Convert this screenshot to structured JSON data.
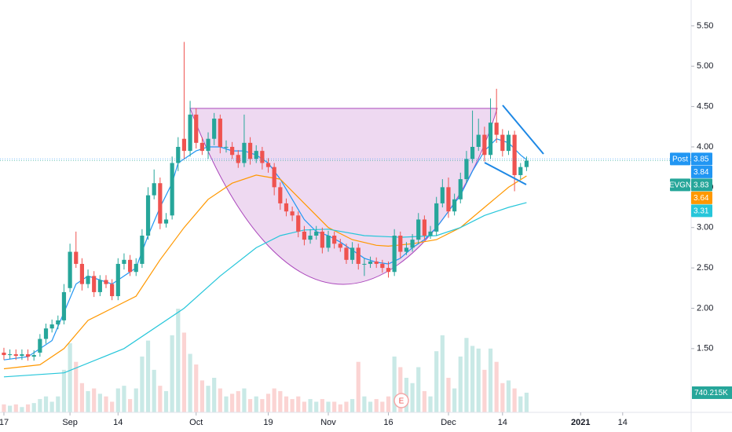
{
  "chart_data": {
    "type": "candlestick",
    "symbol": "EVGN",
    "up_color": "#26a69a",
    "down_color": "#ef5350",
    "open": [
      1.45,
      1.42,
      1.43,
      1.41,
      1.43,
      1.4,
      1.45,
      1.62,
      1.75,
      1.8,
      1.85,
      2.25,
      2.7,
      2.55,
      2.3,
      2.4,
      2.2,
      2.35,
      2.3,
      2.15,
      2.55,
      2.6,
      2.45,
      2.55,
      2.9,
      3.4,
      3.55,
      3.05,
      3.15,
      3.8,
      4.1,
      3.95,
      4.4,
      4.05,
      3.95,
      4.1,
      4.35,
      4.0,
      4.0,
      3.9,
      3.8,
      4.05,
      3.85,
      3.95,
      3.8,
      3.75,
      3.5,
      3.3,
      3.2,
      3.15,
      2.95,
      2.85,
      2.9,
      2.95,
      2.75,
      2.9,
      2.8,
      2.75,
      2.6,
      2.75,
      2.55,
      2.55,
      2.58,
      2.55,
      2.5,
      2.45,
      2.9,
      2.7,
      2.75,
      2.85,
      3.1,
      2.9,
      2.95,
      3.3,
      3.5,
      3.2,
      3.35,
      3.6,
      3.85,
      4.0,
      4.15,
      3.9,
      4.3,
      4.15,
      3.95,
      4.15,
      3.65,
      3.75
    ],
    "high": [
      1.51,
      1.49,
      1.49,
      1.49,
      1.49,
      1.48,
      1.68,
      1.81,
      1.86,
      1.91,
      2.3,
      2.8,
      2.95,
      2.62,
      2.48,
      2.46,
      2.41,
      2.41,
      2.36,
      2.62,
      2.68,
      2.66,
      2.62,
      2.98,
      3.5,
      3.72,
      3.62,
      3.18,
      3.88,
      4.12,
      5.3,
      4.57,
      4.48,
      4.12,
      4.18,
      4.42,
      4.4,
      4.08,
      4.06,
      3.96,
      4.4,
      4.12,
      4.02,
      4.0,
      3.86,
      3.8,
      3.56,
      3.36,
      3.26,
      3.2,
      3.02,
      2.98,
      3.02,
      3.0,
      2.96,
      2.95,
      2.86,
      2.8,
      2.82,
      2.8,
      2.62,
      2.64,
      2.63,
      2.6,
      2.58,
      2.98,
      2.95,
      2.82,
      2.92,
      3.18,
      3.15,
      3.02,
      3.38,
      3.6,
      3.62,
      3.42,
      3.68,
      3.95,
      4.45,
      4.35,
      4.25,
      4.6,
      4.72,
      4.22,
      4.2,
      4.2,
      3.8,
      3.88
    ],
    "low": [
      1.36,
      1.37,
      1.36,
      1.36,
      1.35,
      1.35,
      1.4,
      1.56,
      1.7,
      1.74,
      1.8,
      2.2,
      2.5,
      2.22,
      2.25,
      2.14,
      2.15,
      2.25,
      2.1,
      2.1,
      2.48,
      2.4,
      2.4,
      2.5,
      2.85,
      3.35,
      2.98,
      3.0,
      3.1,
      3.7,
      3.85,
      3.88,
      3.98,
      3.9,
      3.85,
      4.02,
      3.92,
      3.93,
      3.85,
      3.74,
      3.75,
      3.78,
      3.8,
      3.72,
      3.68,
      3.4,
      3.22,
      3.14,
      3.08,
      2.88,
      2.78,
      2.8,
      2.85,
      2.68,
      2.7,
      2.74,
      2.7,
      2.55,
      2.55,
      2.48,
      2.4,
      2.5,
      2.5,
      2.44,
      2.38,
      2.4,
      2.62,
      2.66,
      2.7,
      2.8,
      2.85,
      2.86,
      2.9,
      3.25,
      3.12,
      3.15,
      3.3,
      3.55,
      3.8,
      3.95,
      3.82,
      3.85,
      4.05,
      3.88,
      3.9,
      3.45,
      3.6,
      3.7
    ],
    "close": [
      1.42,
      1.43,
      1.41,
      1.43,
      1.4,
      1.42,
      1.62,
      1.75,
      1.8,
      1.85,
      2.2,
      2.7,
      2.55,
      2.3,
      2.4,
      2.2,
      2.35,
      2.3,
      2.15,
      2.55,
      2.6,
      2.45,
      2.55,
      2.9,
      3.4,
      3.55,
      3.05,
      3.1,
      3.8,
      4.0,
      3.95,
      4.4,
      4.05,
      3.95,
      4.1,
      4.35,
      4.0,
      4.0,
      3.9,
      3.8,
      4.05,
      3.85,
      3.95,
      3.8,
      3.75,
      3.5,
      3.3,
      3.2,
      3.15,
      2.95,
      2.85,
      2.9,
      2.95,
      2.75,
      2.9,
      2.8,
      2.75,
      2.6,
      2.75,
      2.55,
      2.55,
      2.58,
      2.55,
      2.5,
      2.45,
      2.9,
      2.7,
      2.75,
      2.85,
      3.1,
      2.9,
      2.95,
      3.3,
      3.5,
      3.2,
      3.35,
      3.6,
      3.85,
      4.0,
      4.15,
      3.9,
      4.3,
      4.15,
      3.95,
      4.15,
      3.65,
      3.75,
      3.83
    ],
    "volume": {
      "values": [
        300000,
        250000,
        300000,
        200000,
        300000,
        350000,
        500000,
        600000,
        400000,
        600000,
        1600000,
        2600000,
        1900000,
        1100000,
        800000,
        900000,
        700000,
        600000,
        400000,
        900000,
        1000000,
        500000,
        900000,
        2100000,
        2700000,
        1600000,
        1000000,
        800000,
        2900000,
        3900000,
        3000000,
        2200000,
        1800000,
        1200000,
        1000000,
        1300000,
        900000,
        600000,
        700000,
        800000,
        900000,
        500000,
        600000,
        500000,
        700000,
        900000,
        800000,
        600000,
        500000,
        600000,
        400000,
        500000,
        400000,
        500000,
        400000,
        400000,
        300000,
        400000,
        500000,
        1900000,
        600000,
        400000,
        500000,
        400000,
        600000,
        2100000,
        1700000,
        1300000,
        1100000,
        1700000,
        800000,
        600000,
        2300000,
        2900000,
        1300000,
        900000,
        2100000,
        2800000,
        2500000,
        2400000,
        1600000,
        2400000,
        1900000,
        1100000,
        1200000,
        900000,
        600000,
        740215
      ],
      "value_labels": [
        null,
        null,
        null,
        null,
        null,
        null,
        null,
        null,
        null,
        null,
        null,
        null,
        null,
        null,
        null,
        null,
        null,
        null,
        null,
        null,
        null,
        null,
        null,
        null,
        null,
        null,
        null,
        null,
        null,
        null,
        null,
        null,
        null,
        null,
        null,
        null,
        null,
        null,
        null,
        null,
        null,
        null,
        null,
        null,
        null,
        null,
        null,
        null,
        null,
        null,
        null,
        null,
        null,
        null,
        null,
        null,
        null,
        null,
        null,
        null,
        null,
        null,
        null,
        null,
        null,
        null,
        null,
        null,
        null,
        null,
        null,
        null,
        null,
        null,
        null,
        null,
        null,
        null,
        null,
        null,
        null,
        null,
        null,
        null,
        null,
        null,
        null,
        "740.215K"
      ]
    },
    "overlays": [
      {
        "color": "#2196f3",
        "x": [
          0,
          4,
          8,
          10,
          12,
          14,
          16,
          18,
          20,
          22,
          24,
          26,
          28,
          29,
          30,
          32,
          34,
          36,
          38,
          40,
          42,
          44,
          46,
          48,
          50,
          52,
          54,
          56,
          58,
          60,
          62,
          64,
          66,
          68,
          70,
          72,
          74,
          76,
          78,
          80,
          82,
          84,
          86,
          87
        ],
        "values": [
          1.36,
          1.4,
          1.6,
          1.95,
          2.3,
          2.4,
          2.35,
          2.3,
          2.4,
          2.5,
          2.9,
          3.25,
          3.55,
          3.8,
          3.85,
          3.95,
          4.0,
          4.0,
          3.95,
          3.95,
          3.9,
          3.8,
          3.6,
          3.35,
          3.1,
          2.95,
          2.9,
          2.82,
          2.72,
          2.62,
          2.57,
          2.55,
          2.62,
          2.75,
          2.85,
          3.0,
          3.2,
          3.4,
          3.7,
          3.95,
          4.1,
          4.05,
          3.9,
          3.84
        ]
      },
      {
        "color": "#ff9800",
        "x": [
          0,
          6,
          10,
          14,
          18,
          22,
          26,
          30,
          34,
          38,
          42,
          46,
          50,
          54,
          58,
          62,
          64,
          68,
          72,
          76,
          80,
          84,
          87
        ],
        "values": [
          1.25,
          1.3,
          1.5,
          1.85,
          2.0,
          2.15,
          2.6,
          3.0,
          3.35,
          3.55,
          3.65,
          3.6,
          3.3,
          3.0,
          2.85,
          2.78,
          2.77,
          2.8,
          2.85,
          3.0,
          3.25,
          3.5,
          3.64
        ]
      },
      {
        "color": "#26c6da",
        "x": [
          0,
          10,
          20,
          30,
          36,
          42,
          46,
          50,
          54,
          60,
          66,
          72,
          76,
          80,
          84,
          87
        ],
        "values": [
          1.15,
          1.2,
          1.5,
          2.0,
          2.4,
          2.75,
          2.9,
          2.97,
          2.98,
          2.9,
          2.88,
          2.9,
          3.0,
          3.15,
          3.25,
          3.31
        ]
      }
    ],
    "post_market": {
      "label": "Post",
      "value": 3.85,
      "color": "#2196f3"
    },
    "earnings_marker": "E",
    "xlim": [
      -0.65,
      114.4
    ],
    "xticks": [
      {
        "value": 0,
        "label": "17"
      },
      {
        "value": 11,
        "label": "Sep"
      },
      {
        "value": 19,
        "label": "14"
      },
      {
        "value": 32,
        "label": "Oct"
      },
      {
        "value": 44,
        "label": "19"
      },
      {
        "value": 54,
        "label": "Nov"
      },
      {
        "value": 64,
        "label": "16"
      },
      {
        "value": 74,
        "label": "Dec"
      },
      {
        "value": 83,
        "label": "14"
      },
      {
        "value": 96,
        "label": "2021"
      },
      {
        "value": 103,
        "label": "14"
      }
    ],
    "ylim": [
      0.71,
      5.82
    ],
    "yticks": [
      {
        "value": 1.5,
        "label": "1.50"
      },
      {
        "value": 2,
        "label": "2.00"
      },
      {
        "value": 2.5,
        "label": "2.50"
      },
      {
        "value": 3,
        "label": "3.00"
      },
      {
        "value": 3.5,
        "label": "3.50"
      },
      {
        "value": 4,
        "label": "4.00"
      },
      {
        "value": 4.5,
        "label": "4.50"
      },
      {
        "value": 5,
        "label": "5.00"
      },
      {
        "value": 5.5,
        "label": "5.50"
      }
    ]
  }
}
